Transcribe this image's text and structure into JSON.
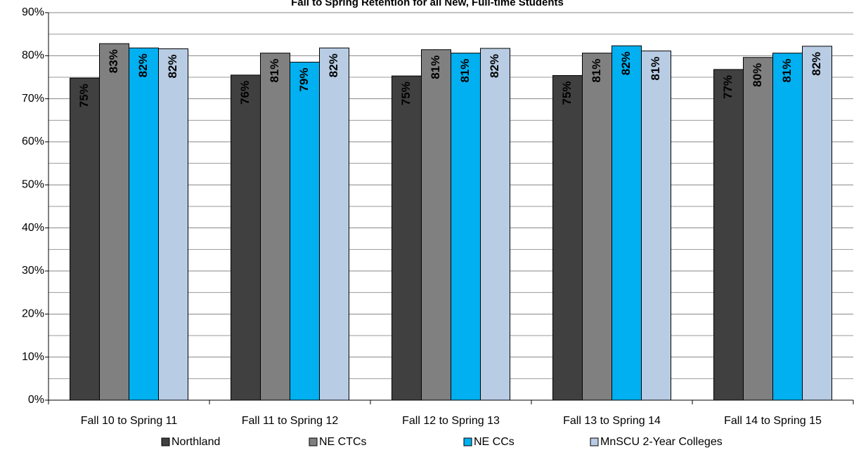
{
  "chart_data": {
    "type": "bar",
    "title": "Fall to Spring Retention for all New, Full-time Students",
    "categories": [
      "Fall 10 to Spring 11",
      "Fall 11 to Spring 12",
      "Fall 12 to Spring 13",
      "Fall 13 to Spring 14",
      "Fall 14 to Spring 15"
    ],
    "series": [
      {
        "name": "Northland",
        "color": "#404040",
        "values": [
          74.8,
          75.5,
          75.3,
          75.4,
          76.8
        ],
        "value_labels": [
          "75%",
          "76%",
          "75%",
          "75%",
          "77%"
        ]
      },
      {
        "name": "NE CTCs",
        "color": "#808080",
        "values": [
          82.8,
          80.6,
          81.4,
          80.6,
          79.6
        ],
        "value_labels": [
          "83%",
          "81%",
          "81%",
          "81%",
          "80%"
        ]
      },
      {
        "name": "NE CCs",
        "color": "#00b0f0",
        "values": [
          81.8,
          78.5,
          80.6,
          82.3,
          80.6
        ],
        "value_labels": [
          "82%",
          "79%",
          "81%",
          "82%",
          "81%"
        ]
      },
      {
        "name": "MnSCU 2-Year Colleges",
        "color": "#b8cce4",
        "values": [
          81.6,
          81.8,
          81.7,
          81.1,
          82.2
        ],
        "value_labels": [
          "82%",
          "82%",
          "82%",
          "81%",
          "82%"
        ]
      }
    ],
    "ylim": [
      0,
      90
    ],
    "yticks": [
      {
        "value": 0,
        "label": "0%"
      },
      {
        "value": 10,
        "label": "10%"
      },
      {
        "value": 20,
        "label": "20%"
      },
      {
        "value": 30,
        "label": "30%"
      },
      {
        "value": 40,
        "label": "40%"
      },
      {
        "value": 50,
        "label": "50%"
      },
      {
        "value": 60,
        "label": "60%"
      },
      {
        "value": 70,
        "label": "70%"
      },
      {
        "value": 80,
        "label": "80%"
      },
      {
        "value": 90,
        "label": "90%"
      }
    ],
    "minor_yticks": [
      5,
      15,
      25,
      35,
      45,
      55,
      65,
      75,
      85
    ],
    "grid": true,
    "legend": "bottom"
  }
}
